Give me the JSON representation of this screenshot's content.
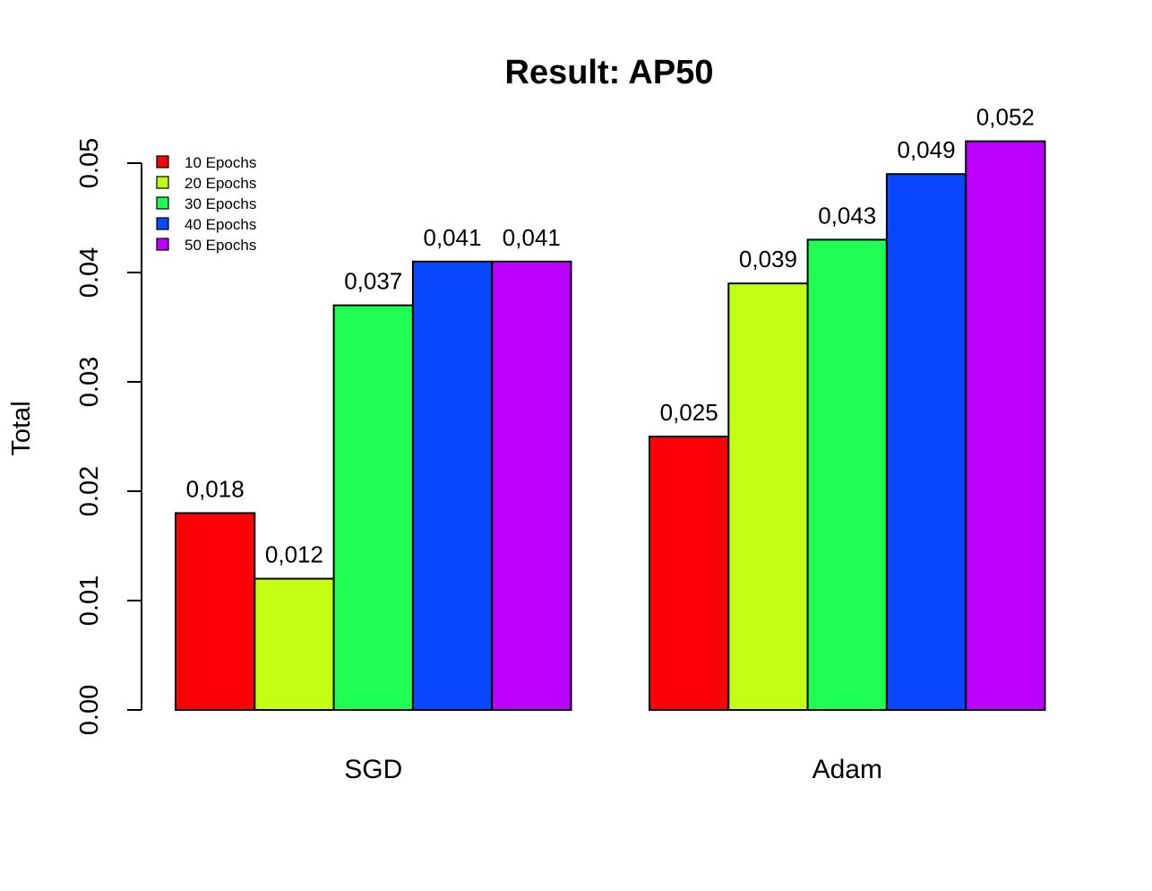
{
  "chart_data": {
    "type": "bar",
    "title": "Result: AP50",
    "xlabel": "",
    "ylabel": "Total",
    "categories": [
      "SGD",
      "Adam"
    ],
    "series": [
      {
        "name": "10 Epochs",
        "color": "#fb0007",
        "values": [
          0.018,
          0.025
        ],
        "labels": [
          "0,018",
          "0,025"
        ]
      },
      {
        "name": "20 Epochs",
        "color": "#c3ff15",
        "values": [
          0.012,
          0.039
        ],
        "labels": [
          "0,012",
          "0,039"
        ]
      },
      {
        "name": "30 Epochs",
        "color": "#1fff53",
        "values": [
          0.037,
          0.043
        ],
        "labels": [
          "0,037",
          "0,043"
        ]
      },
      {
        "name": "40 Epochs",
        "color": "#0a48ff",
        "values": [
          0.041,
          0.049
        ],
        "labels": [
          "0,041",
          "0,049"
        ]
      },
      {
        "name": "50 Epochs",
        "color": "#bb00ff",
        "values": [
          0.041,
          0.052
        ],
        "labels": [
          "0,041",
          "0,052"
        ]
      }
    ],
    "ylim": [
      0,
      0.05
    ],
    "yticks": [
      0,
      0.01,
      0.02,
      0.03,
      0.04,
      0.05
    ],
    "ytick_labels": [
      "0.00",
      "0.01",
      "0.02",
      "0.03",
      "0.04",
      "0.05"
    ],
    "grid": false,
    "legend_position": "top-left"
  }
}
